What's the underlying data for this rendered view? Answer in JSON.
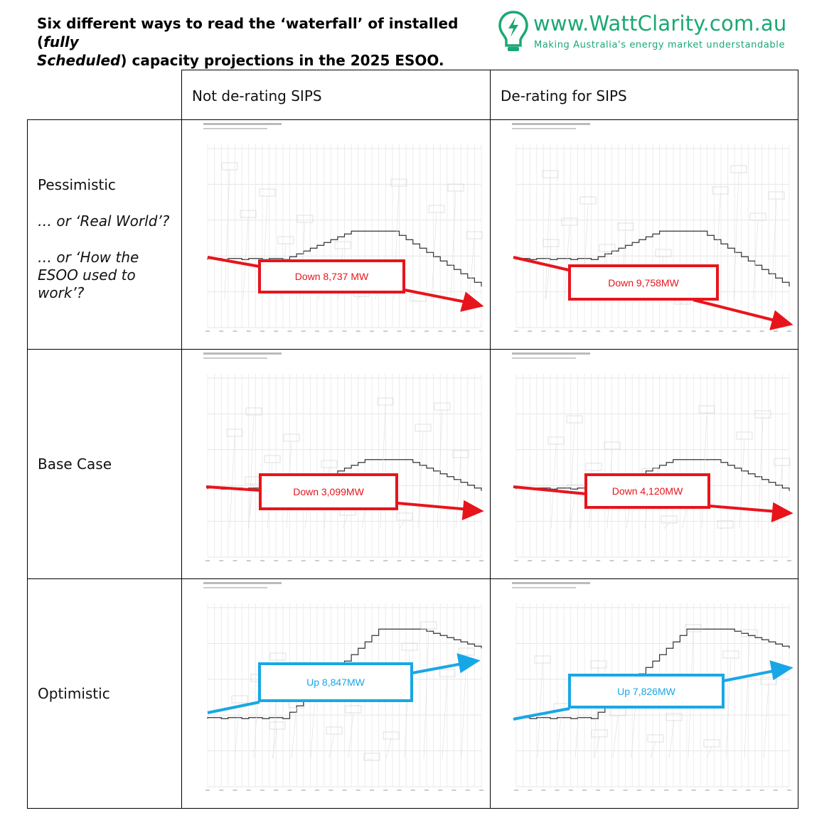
{
  "title": {
    "line1_a": "Six different ways to read the ‘waterfall’ of installed (",
    "line1_i": "fully",
    "line2_i": "Scheduled",
    "line2_b": ") capacity projections in the 2025 ESOO."
  },
  "logo": {
    "url": "www.WattClarity.com.au",
    "tagline": "Making Australia's energy market understandable",
    "color": "#1aa873"
  },
  "columns": [
    "Not de-rating SIPS",
    "De-rating for SIPS"
  ],
  "rows": [
    {
      "label": "Pessimistic",
      "sub1": "… or ‘Real World’?",
      "sub2": "… or ‘How the ESOO used to work’?"
    },
    {
      "label": "Base Case"
    },
    {
      "label": "Optimistic"
    }
  ],
  "callouts": [
    {
      "text": "Down 8,737 MW",
      "kind": "down"
    },
    {
      "text": "Down 9,758MW",
      "kind": "down"
    },
    {
      "text": "Down 3,099MW",
      "kind": "down"
    },
    {
      "text": "Down 4,120MW",
      "kind": "down"
    },
    {
      "text": "Up 8,847MW",
      "kind": "up"
    },
    {
      "text": "Up 7,826MW",
      "kind": "up"
    }
  ],
  "colors": {
    "down": "#e8141b",
    "up": "#18a7e6"
  }
}
